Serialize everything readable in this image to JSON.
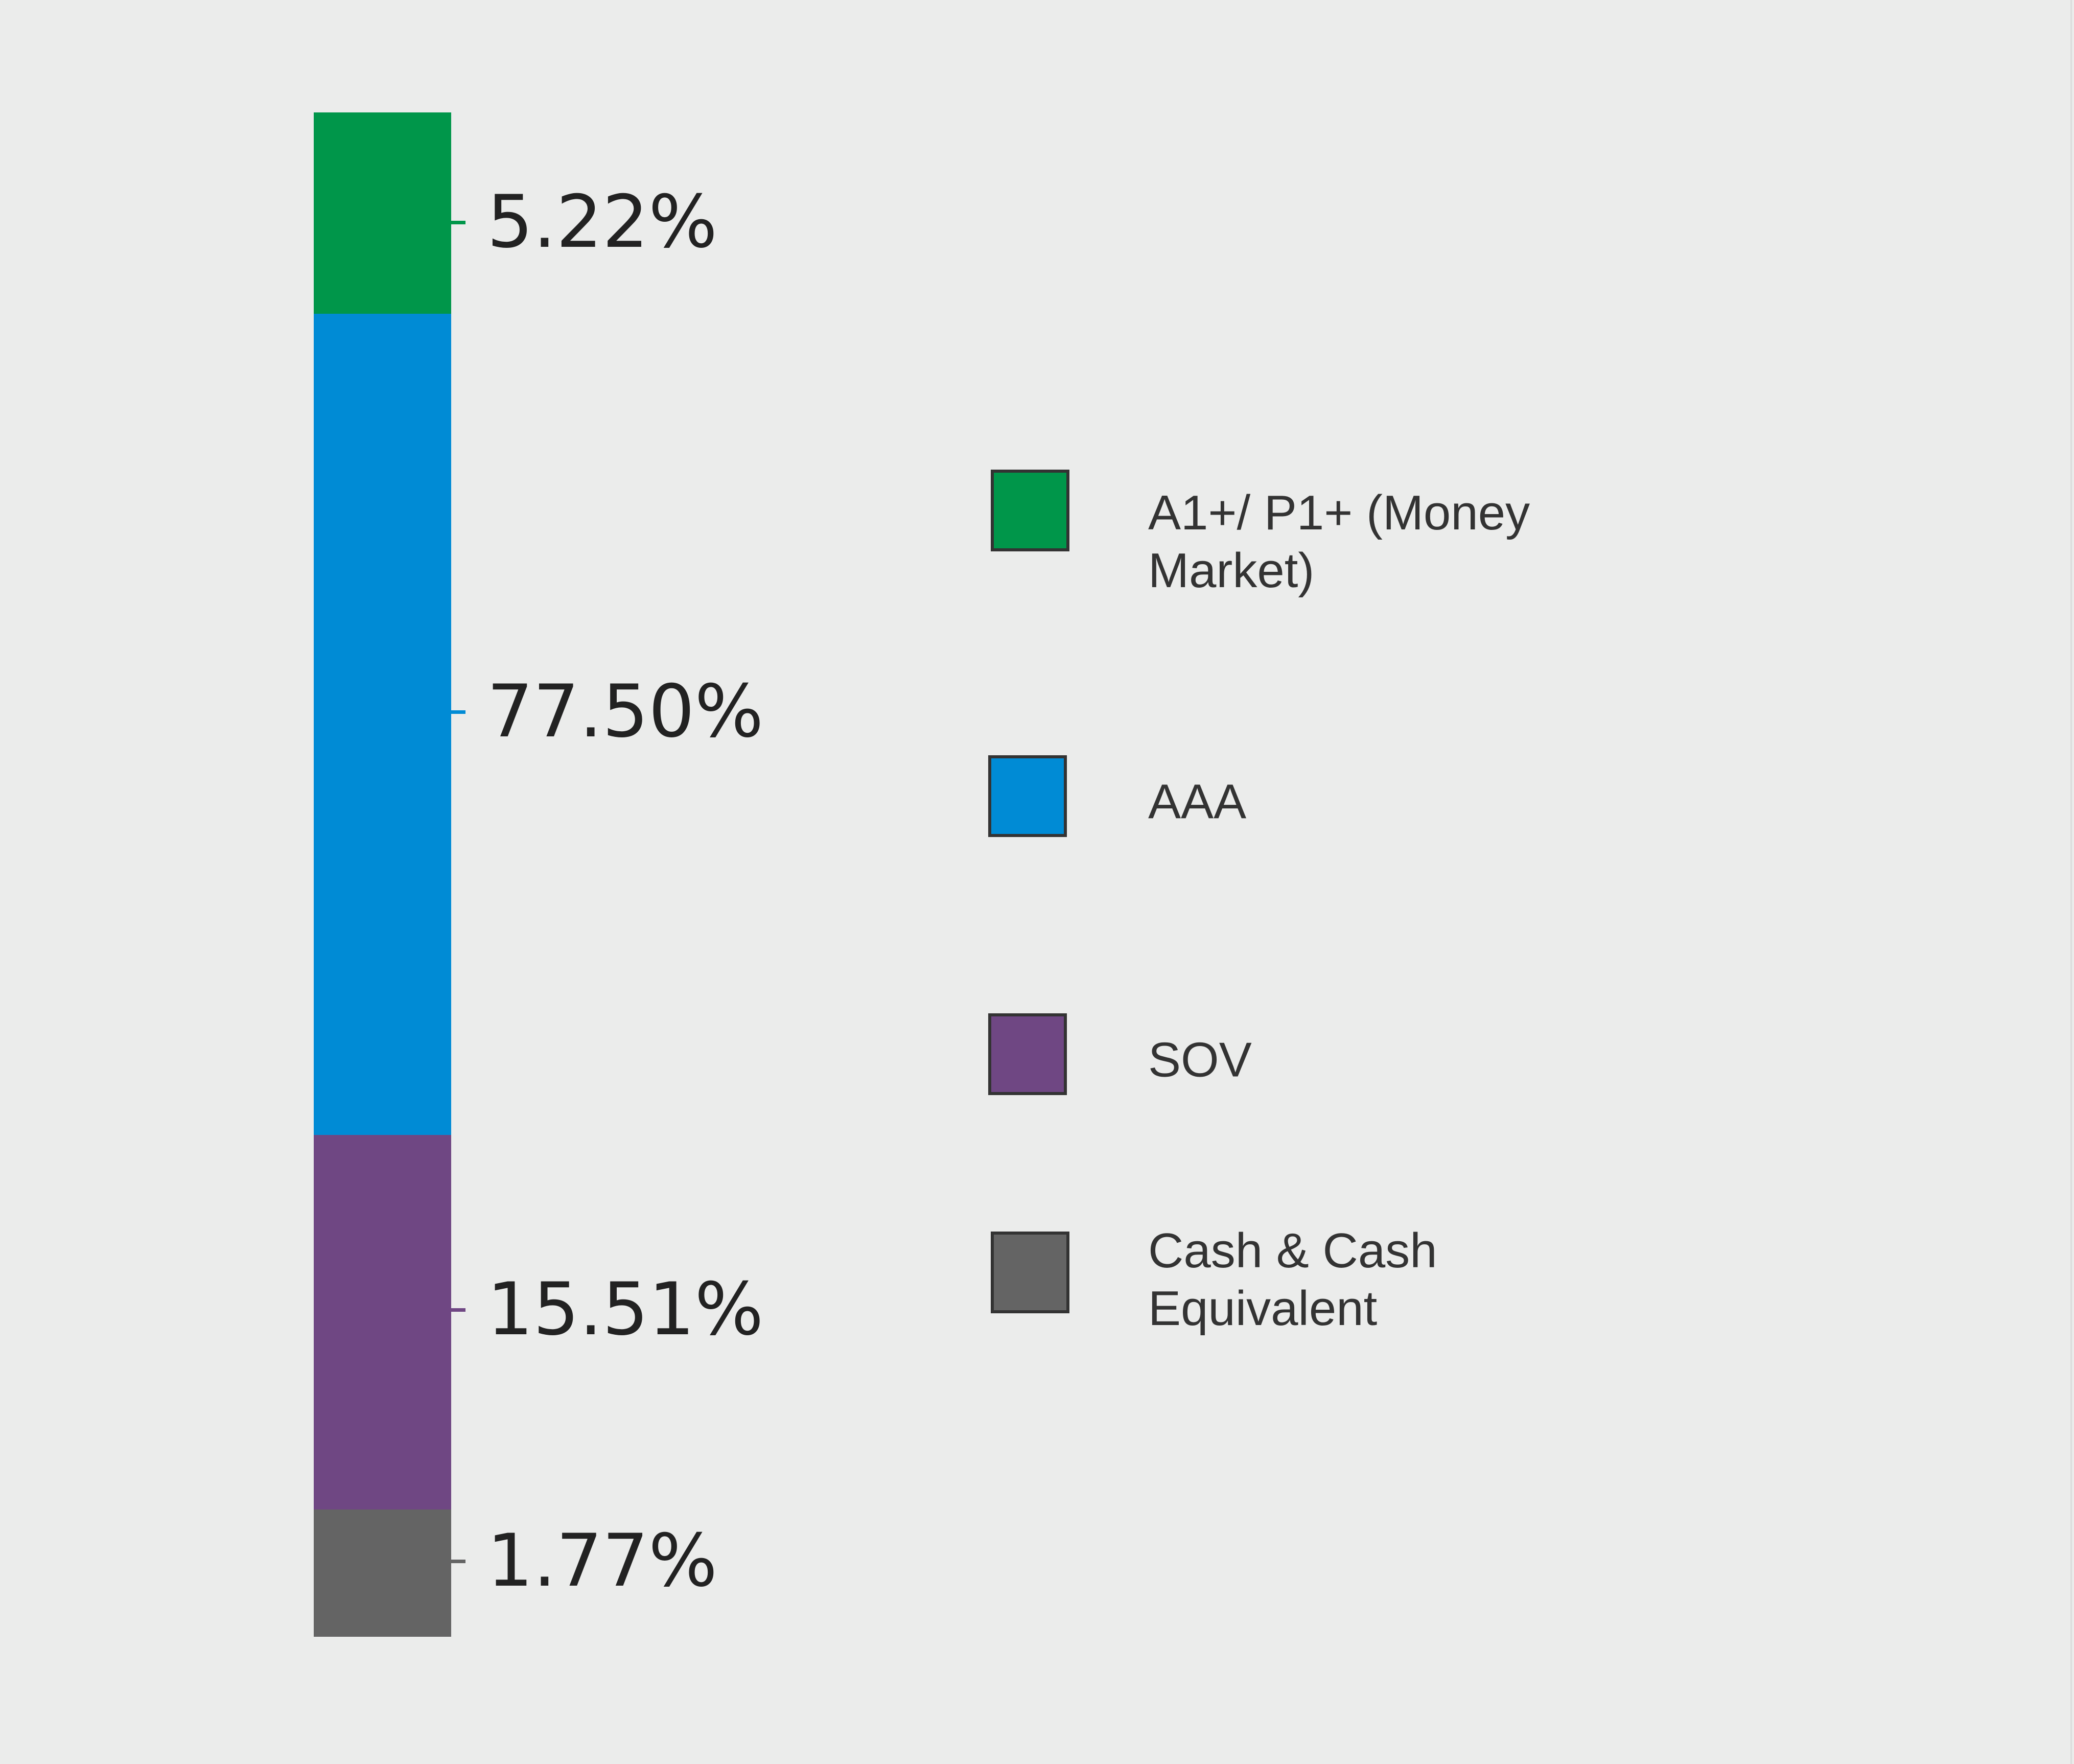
{
  "chart_data": {
    "type": "bar",
    "subtype": "stacked-single",
    "title": "",
    "xlabel": "",
    "ylabel": "",
    "series": [
      {
        "name": "A1+/ P1+ (Money Market)",
        "value": 5.22,
        "label": "5.22%",
        "color": "#00964a"
      },
      {
        "name": "AAA",
        "value": 77.5,
        "label": "77.50%",
        "color": "#008bd5"
      },
      {
        "name": "SOV",
        "value": 15.51,
        "label": "15.51%",
        "color": "#6f4783"
      },
      {
        "name": "Cash & Cash Equivalent",
        "value": 1.77,
        "label": "1.77%",
        "color": "#646464"
      }
    ],
    "legend": {
      "position": "right",
      "items": [
        {
          "line1": "A1+/ P1+ (Money",
          "line2": "Market)"
        },
        {
          "line1": "AAA"
        },
        {
          "line1": "SOV"
        },
        {
          "line1": "Cash & Cash Equivalent"
        }
      ]
    }
  }
}
